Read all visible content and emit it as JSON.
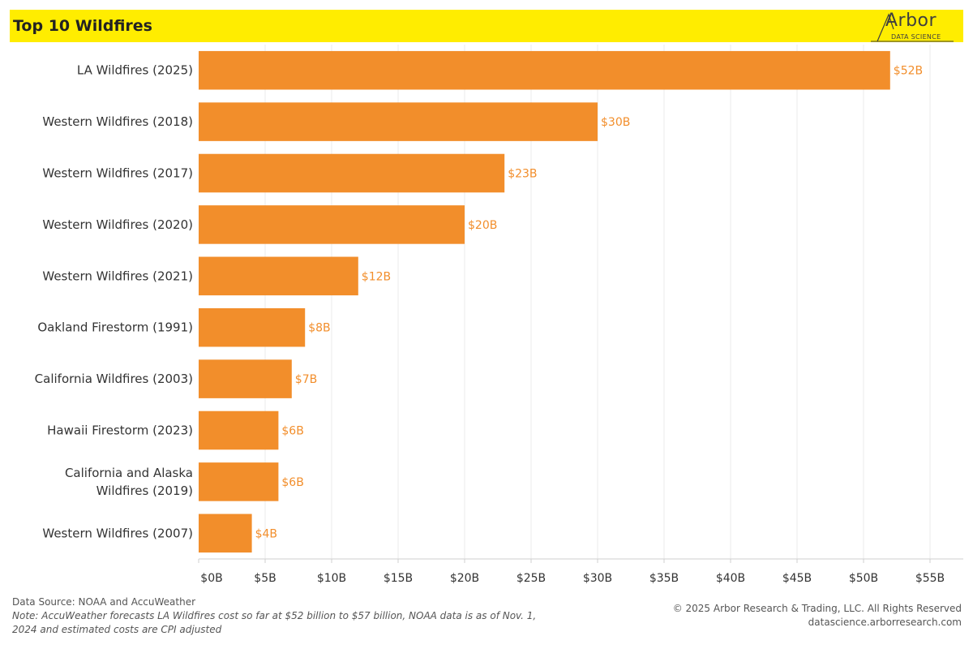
{
  "header": {
    "title": "Top 10 Wildfires",
    "logo_word": "Arbor",
    "logo_sub": "DATA SCIENCE",
    "background_color": "#ffed00"
  },
  "chart_data": {
    "type": "bar",
    "orientation": "horizontal",
    "categories": [
      "LA Wildfires (2025)",
      "Western Wildfires (2018)",
      "Western Wildfires (2017)",
      "Western Wildfires (2020)",
      "Western Wildfires (2021)",
      "Oakland Firestorm (1991)",
      "California Wildfires (2003)",
      "Hawaii Firestorm (2023)",
      "California and Alaska Wildfires (2019)",
      "Western Wildfires (2007)"
    ],
    "values": [
      52,
      30,
      23,
      20,
      12,
      8,
      7,
      6,
      6,
      4
    ],
    "data_labels": [
      "$52B",
      "$30B",
      "$23B",
      "$20B",
      "$12B",
      "$8B",
      "$7B",
      "$6B",
      "$6B",
      "$4B"
    ],
    "x_ticks": [
      0,
      5,
      10,
      15,
      20,
      25,
      30,
      35,
      40,
      45,
      50,
      55
    ],
    "x_tick_labels": [
      "$0B",
      "$5B",
      "$10B",
      "$15B",
      "$20B",
      "$25B",
      "$30B",
      "$35B",
      "$40B",
      "$45B",
      "$50B",
      "$55B"
    ],
    "xlim": [
      0,
      57.5
    ],
    "xlabel": "",
    "ylabel": "",
    "grid": true,
    "bar_color": "#f28e2b",
    "label_color": "#f28e2b"
  },
  "footer": {
    "source": "Data Source: NOAA and AccuWeather",
    "note": "Note: AccuWeather forecasts LA Wildfires cost so far at $52 billion to $57 billion, NOAA data is as of Nov. 1, 2024 and estimated costs are CPI adjusted",
    "copyright": "© 2025 Arbor Research & Trading, LLC. All Rights Reserved",
    "website": "datascience.arborresearch.com"
  }
}
